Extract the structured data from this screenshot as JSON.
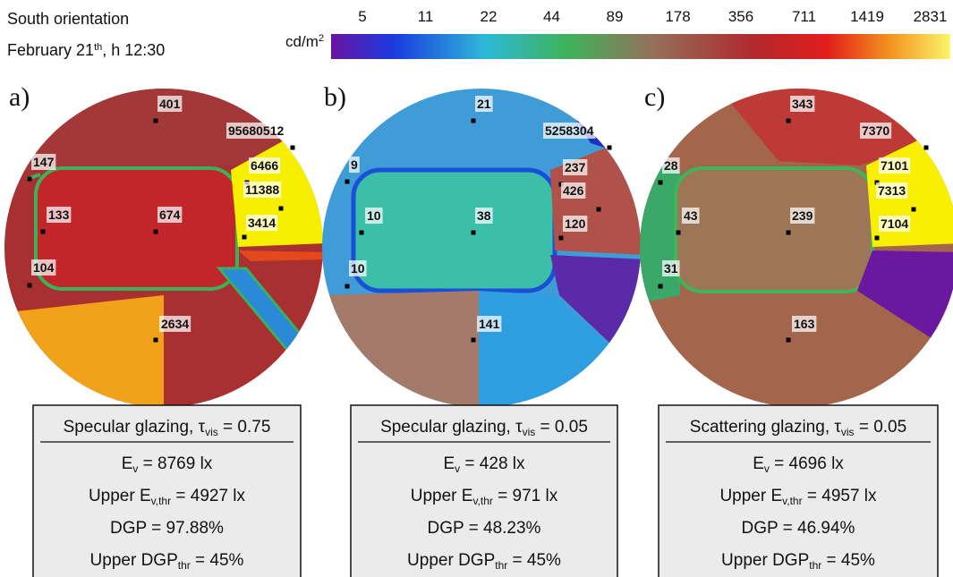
{
  "header": {
    "title": "South orientation",
    "date": [
      "February 21",
      "th",
      ", h 12:30"
    ]
  },
  "colorbar": {
    "unit": [
      "cd/m",
      "2"
    ],
    "ticks": [
      "5",
      "11",
      "22",
      "44",
      "89",
      "178",
      "356",
      "711",
      "1419",
      "2831"
    ]
  },
  "panels": [
    {
      "letter": "a)",
      "points": [
        "401",
        "95680512",
        "147",
        "6466",
        "11388",
        "133",
        "674",
        "3414",
        "104",
        "2634"
      ],
      "box": {
        "title": [
          "Specular glazing, τ",
          "vis",
          " = 0.75"
        ],
        "lines": [
          [
            "E",
            "v",
            " = 8769 lx"
          ],
          [
            "Upper E",
            "v,thr",
            " = 4927 lx"
          ],
          [
            "DGP = 97.88%"
          ],
          [
            "Upper DGP",
            "thr",
            " = 45%"
          ]
        ]
      }
    },
    {
      "letter": "b)",
      "points": [
        "21",
        "5258304",
        "9",
        "237",
        "426",
        "10",
        "38",
        "120",
        "10",
        "141"
      ],
      "box": {
        "title": [
          "Specular glazing, τ",
          "vis",
          " = 0.05"
        ],
        "lines": [
          [
            "E",
            "v",
            " = 428 lx"
          ],
          [
            "Upper E",
            "v,thr",
            " = 971 lx"
          ],
          [
            "DGP = 48.23%"
          ],
          [
            "Upper DGP",
            "thr",
            " = 45%"
          ]
        ]
      }
    },
    {
      "letter": "c)",
      "points": [
        "343",
        "7370",
        "28",
        "7101",
        "7313",
        "43",
        "239",
        "7104",
        "31",
        "163"
      ],
      "box": {
        "title": [
          "Scattering glazing, τ",
          "vis",
          " = 0.05"
        ],
        "lines": [
          [
            "E",
            "v",
            " = 4696 lx"
          ],
          [
            "Upper E",
            "v,thr",
            " = 4957 lx"
          ],
          [
            "DGP = 46.94%"
          ],
          [
            "Upper DGP",
            "thr",
            " = 45%"
          ]
        ]
      }
    }
  ]
}
